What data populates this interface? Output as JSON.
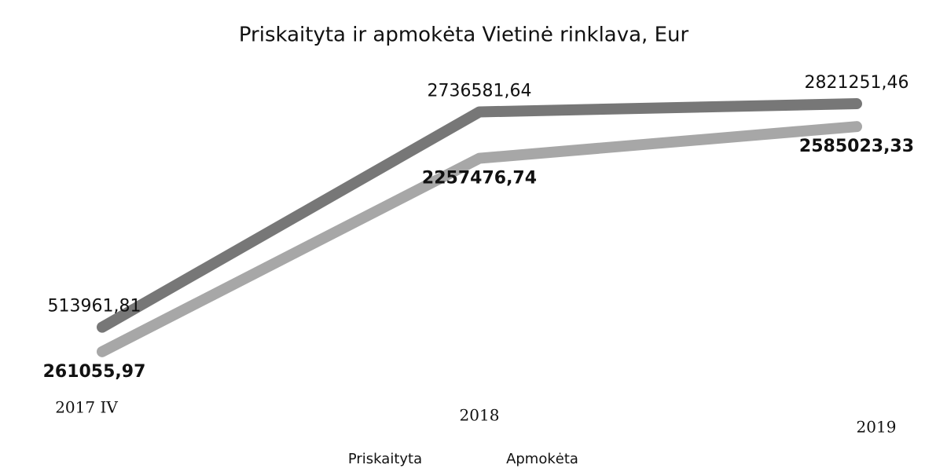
{
  "chart_data": {
    "type": "line",
    "title": "Priskaityta ir apmokėta Vietinė rinklava, Eur",
    "categories": [
      "2017 IV",
      "2018",
      "2019"
    ],
    "series": [
      {
        "name": "Priskaityta",
        "color": "#4a4a4a",
        "values": [
          513961.81,
          2736581.64,
          2821251.46
        ],
        "value_labels": [
          "513961,81",
          "2736581,64",
          "2821251,46"
        ]
      },
      {
        "name": "Apmokėta",
        "color": "#8a8a8a",
        "values": [
          261055.97,
          2257476.74,
          2585023.33
        ],
        "value_labels": [
          "261055,97",
          "2257476,74",
          "2585023,33"
        ]
      }
    ],
    "ylim": [
      0,
      3000000
    ],
    "legend": "bottom"
  }
}
